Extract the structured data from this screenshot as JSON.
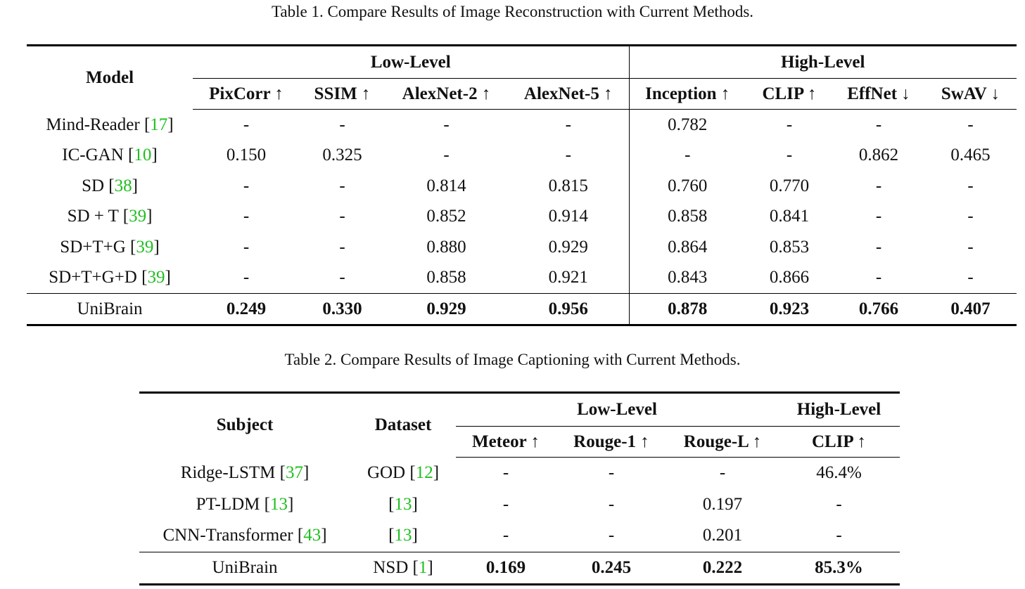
{
  "table1": {
    "caption": "Table 1. Compare Results of Image Reconstruction with Current Methods.",
    "model_header": "Model",
    "group_low": "Low-Level",
    "group_high": "High-Level",
    "columns": [
      "PixCorr ↑",
      "SSIM ↑",
      "AlexNet-2 ↑",
      "AlexNet-5 ↑",
      "Inception ↑",
      "CLIP ↑",
      "EffNet ↓",
      "SwAV ↓"
    ],
    "rows": [
      {
        "model": "Mind-Reader",
        "ref": "17",
        "values": [
          "-",
          "-",
          "-",
          "-",
          "0.782",
          "-",
          "-",
          "-"
        ]
      },
      {
        "model": "IC-GAN",
        "ref": "10",
        "values": [
          "0.150",
          "0.325",
          "-",
          "-",
          "-",
          "-",
          "0.862",
          "0.465"
        ]
      },
      {
        "model": "SD",
        "ref": "38",
        "values": [
          "-",
          "-",
          "0.814",
          "0.815",
          "0.760",
          "0.770",
          "-",
          "-"
        ]
      },
      {
        "model": "SD + T",
        "ref": "39",
        "values": [
          "-",
          "-",
          "0.852",
          "0.914",
          "0.858",
          "0.841",
          "-",
          "-"
        ]
      },
      {
        "model": "SD+T+G",
        "ref": "39",
        "values": [
          "-",
          "-",
          "0.880",
          "0.929",
          "0.864",
          "0.853",
          "-",
          "-"
        ]
      },
      {
        "model": "SD+T+G+D",
        "ref": "39",
        "values": [
          "-",
          "-",
          "0.858",
          "0.921",
          "0.843",
          "0.866",
          "-",
          "-"
        ]
      }
    ],
    "final_row": {
      "model": "UniBrain",
      "values": [
        "0.249",
        "0.330",
        "0.929",
        "0.956",
        "0.878",
        "0.923",
        "0.766",
        "0.407"
      ]
    }
  },
  "table2": {
    "caption": "Table 2. Compare Results of Image Captioning with Current Methods.",
    "subject_header": "Subject",
    "dataset_header": "Dataset",
    "group_low": "Low-Level",
    "group_high": "High-Level",
    "columns": [
      "Meteor ↑",
      "Rouge-1 ↑",
      "Rouge-L ↑",
      "CLIP ↑"
    ],
    "rows": [
      {
        "subject": "Ridge-LSTM",
        "subject_ref": "37",
        "dataset": "GOD",
        "dataset_ref": "12",
        "values": [
          "-",
          "-",
          "-",
          "46.4%"
        ]
      },
      {
        "subject": "PT-LDM",
        "subject_ref": "13",
        "dataset": "",
        "dataset_ref": "13",
        "values": [
          "-",
          "-",
          "0.197",
          "-"
        ]
      },
      {
        "subject": "CNN-Transformer",
        "subject_ref": "43",
        "dataset": "",
        "dataset_ref": "13",
        "values": [
          "-",
          "-",
          "0.201",
          "-"
        ]
      }
    ],
    "final_row": {
      "subject": "UniBrain",
      "dataset": "NSD",
      "dataset_ref": "1",
      "values": [
        "0.169",
        "0.245",
        "0.222",
        "85.3%"
      ]
    }
  }
}
